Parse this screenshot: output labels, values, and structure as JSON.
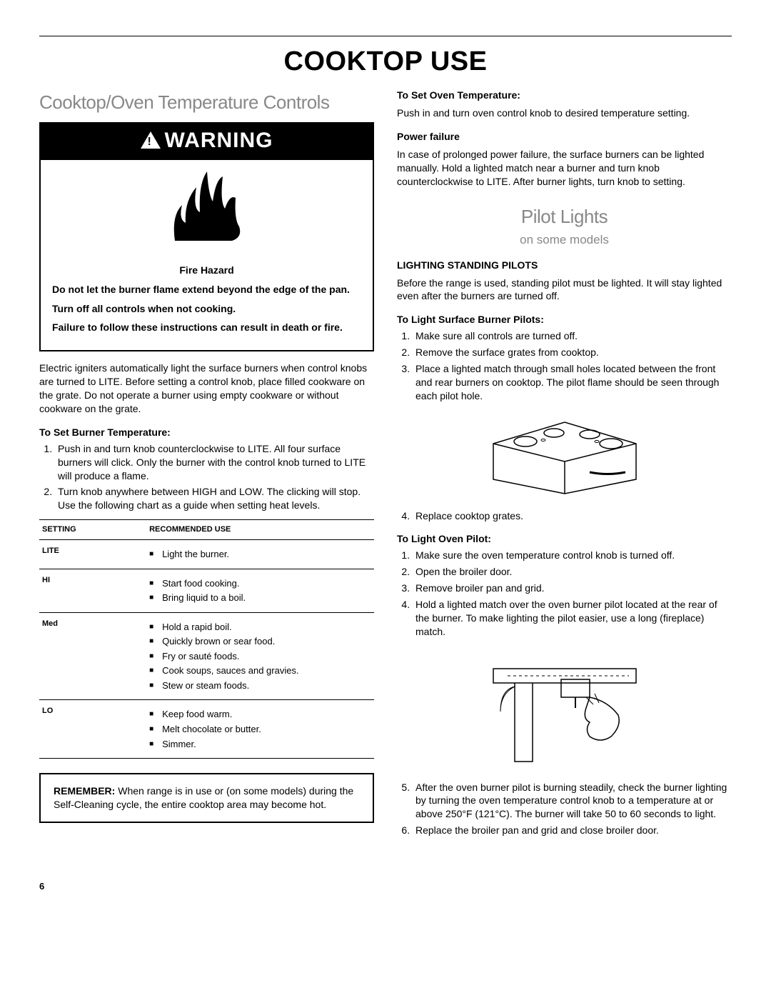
{
  "page_title": "COOKTOP USE",
  "page_number": "6",
  "left": {
    "heading": "Cooktop/Oven Temperature Controls",
    "warning_label": "WARNING",
    "fire_hazard": "Fire Hazard",
    "warn1": "Do not let the burner flame extend beyond the edge of the pan.",
    "warn2": "Turn off all controls when not cooking.",
    "warn3": "Failure to follow these instructions can result in death or fire.",
    "intro": "Electric igniters automatically light the surface burners when control knobs are turned to LITE. Before setting a control knob, place filled cookware on the grate. Do not operate a burner using empty cookware or without cookware on the grate.",
    "burner_head": "To Set Burner Temperature:",
    "burner_steps": [
      "Push in and turn knob counterclockwise to LITE. All four surface burners will click. Only the burner with the control knob turned to LITE will produce a flame.",
      "Turn knob anywhere between HIGH and LOW. The clicking will stop. Use the following chart as a guide when setting heat levels."
    ],
    "table": {
      "col1": "SETTING",
      "col2": "RECOMMENDED USE",
      "rows": [
        {
          "name": "LITE",
          "uses": [
            "Light the burner."
          ]
        },
        {
          "name": "HI",
          "uses": [
            "Start food cooking.",
            "Bring liquid to a boil."
          ]
        },
        {
          "name": "Med",
          "uses": [
            "Hold a rapid boil.",
            "Quickly brown or sear food.",
            "Fry or sauté foods.",
            "Cook soups, sauces and gravies.",
            "Stew or steam foods."
          ]
        },
        {
          "name": "LO",
          "uses": [
            "Keep food warm.",
            "Melt chocolate or butter.",
            "Simmer."
          ]
        }
      ]
    },
    "remember_label": "REMEMBER:",
    "remember_text": " When range is in use or (on some models) during the Self-Cleaning cycle, the entire cooktop area may become hot."
  },
  "right": {
    "oven_temp_head": "To Set Oven Temperature:",
    "oven_temp_text": "Push in and turn oven control knob to desired temperature setting.",
    "power_head": "Power failure",
    "power_text": "In case of prolonged power failure, the surface burners can be lighted manually. Hold a lighted match near a burner and turn knob counterclockwise to LITE. After burner lights, turn knob to setting.",
    "pilot_heading": "Pilot Lights",
    "pilot_sub": "on some models",
    "lighting_head": "LIGHTING STANDING PILOTS",
    "lighting_text": "Before the range is used, standing pilot must be lighted. It will stay lighted even after the burners are turned off.",
    "surface_head": "To Light Surface Burner Pilots:",
    "surface_steps_a": [
      "Make sure all controls are turned off.",
      "Remove the surface grates from cooktop.",
      "Place a lighted match through small holes located between the front and rear burners on cooktop. The pilot flame should be seen through each pilot hole."
    ],
    "surface_steps_b": [
      "Replace cooktop grates."
    ],
    "oven_pilot_head": "To Light Oven Pilot:",
    "oven_pilot_steps_a": [
      "Make sure the oven temperature control knob is turned off.",
      "Open the broiler door.",
      "Remove broiler pan and grid.",
      "Hold a lighted match over the oven burner pilot located at the rear of the burner. To make lighting the pilot easier, use a long (fireplace) match."
    ],
    "oven_pilot_steps_b": [
      "After the oven burner pilot is burning steadily, check the burner lighting by turning the oven temperature control knob to a temperature at or above 250°F (121°C). The burner will take 50 to 60 seconds to light.",
      "Replace the broiler pan and grid and close broiler door."
    ]
  }
}
